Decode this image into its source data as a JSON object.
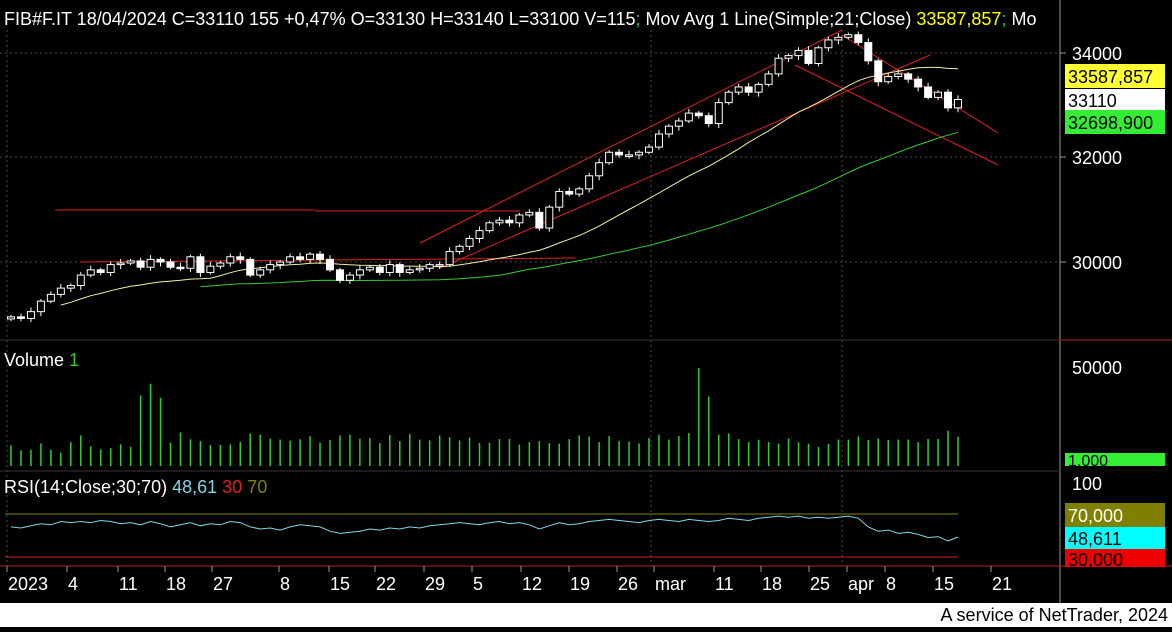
{
  "header": {
    "symbol_info": "FIB#F.IT 18/04/2024 C=33110 155 +0,47% O=33130 H=33140 L=33100 V=115",
    "sep1": ";",
    "ma_label": " Mov Avg 1 Line(Simple;21;Close) ",
    "ma_value": "33587,857",
    "sep2": ";",
    "trailing": " Mo"
  },
  "price_axis": {
    "ticks": [
      "34000",
      "32000",
      "30000"
    ],
    "badge_ma": "33587,857",
    "badge_close": "33110",
    "badge_ma2": "32698,900"
  },
  "volume_panel": {
    "label": "Volume",
    "value": "1",
    "tick": "50000",
    "badge": "1,000"
  },
  "rsi_panel": {
    "label": "RSI(14;Close;30;70)",
    "value": "48,61",
    "low": "30",
    "high": "70",
    "tick": "100",
    "badge_high": "70,000",
    "badge_value": "48,611",
    "badge_low": "30,000"
  },
  "time_axis": {
    "labels": [
      "2023",
      "4",
      "11",
      "18",
      "27",
      "8",
      "15",
      "22",
      "29",
      "5",
      "12",
      "19",
      "26",
      "mar",
      "11",
      "18",
      "25",
      "apr",
      "8",
      "15",
      "21"
    ]
  },
  "footer": {
    "credit": "A service of NetTrader, 2024"
  },
  "colors": {
    "background": "#000000",
    "candle": "#ffffff",
    "ma_short": "#f0f0a0",
    "ma_long": "#33cc33",
    "channel": "#e02020",
    "volume": "#33cc33",
    "rsi": "#7fd8e6",
    "rsi_high": "#808000",
    "rsi_low": "#d02020"
  },
  "chart_data": {
    "type": "candlestick",
    "symbol": "FIB#F.IT",
    "last": {
      "date": "18/04/2024",
      "close": 33110,
      "change": 155,
      "change_pct": "+0,47%",
      "open": 33130,
      "high": 33140,
      "low": 33100,
      "volume": 115
    },
    "y_range": [
      28700,
      34500
    ],
    "series": {
      "close": [
        28950,
        28920,
        29050,
        29250,
        29380,
        29500,
        29550,
        29750,
        29850,
        29800,
        29950,
        29980,
        30020,
        29900,
        30050,
        30000,
        29900,
        29880,
        30100,
        29800,
        29920,
        29980,
        30100,
        30050,
        29750,
        29850,
        29950,
        30000,
        30100,
        30050,
        30150,
        30050,
        29850,
        29650,
        29750,
        29850,
        29900,
        29800,
        29950,
        29800,
        29850,
        29880,
        29950,
        29950,
        30200,
        30300,
        30450,
        30600,
        30750,
        30800,
        30750,
        30900,
        30950,
        30650,
        31050,
        31350,
        31300,
        31400,
        31650,
        31900,
        32100,
        32050,
        32050,
        32100,
        32200,
        32450,
        32600,
        32700,
        32850,
        32800,
        32650,
        33050,
        33250,
        33350,
        33250,
        33400,
        33600,
        33900,
        33950,
        34050,
        33800,
        34100,
        34250,
        34300,
        34350,
        34200,
        33850,
        33450,
        33550,
        33600,
        33500,
        33350,
        33150,
        33250,
        32950,
        33110
      ],
      "volume": [
        10600,
        8000,
        8300,
        11500,
        8300,
        6800,
        12200,
        15600,
        10000,
        8500,
        9100,
        11100,
        9800,
        36000,
        42000,
        34800,
        11900,
        17200,
        13600,
        12700,
        10700,
        10700,
        11000,
        12200,
        16600,
        16000,
        13900,
        13500,
        13000,
        13600,
        15200,
        11900,
        13300,
        15600,
        16000,
        13900,
        14200,
        11600,
        15800,
        12700,
        16300,
        13500,
        13100,
        15600,
        14700,
        13100,
        14500,
        11700,
        11800,
        13700,
        13800,
        11000,
        12200,
        12700,
        11700,
        11400,
        13700,
        15600,
        15000,
        12200,
        15200,
        12700,
        12400,
        11500,
        14300,
        16000,
        13500,
        15400,
        16800,
        50000,
        35400,
        16000,
        16600,
        13700,
        12200,
        13400,
        12200,
        11400,
        14000,
        12100,
        11400,
        9700,
        11300,
        13500,
        13500,
        15100,
        13300,
        14000,
        13300,
        13500,
        13500,
        12200,
        13800,
        13800,
        18000,
        15000
      ],
      "rsi": [
        58,
        57,
        59,
        61,
        60,
        63,
        62,
        63,
        62,
        64,
        63,
        61,
        62,
        60,
        63,
        61,
        58,
        60,
        62,
        59,
        61,
        60,
        63,
        62,
        58,
        56,
        57,
        55,
        58,
        60,
        59,
        58,
        54,
        52,
        53,
        54,
        56,
        55,
        57,
        56,
        58,
        57,
        59,
        60,
        61,
        62,
        61,
        60,
        62,
        63,
        61,
        62,
        60,
        56,
        59,
        62,
        60,
        61,
        63,
        64,
        65,
        64,
        63,
        62,
        64,
        65,
        64,
        63,
        65,
        64,
        63,
        64,
        66,
        65,
        64,
        66,
        67,
        68,
        67,
        68,
        66,
        67,
        66,
        67,
        68,
        66,
        58,
        54,
        55,
        52,
        53,
        51,
        48,
        49,
        45,
        48.6
      ]
    },
    "indicators": {
      "sma21_last": 33587.857,
      "sma_long_last": 32698.9,
      "rsi_last": 48.611,
      "rsi_levels": [
        30,
        70
      ]
    },
    "rsi_range": [
      0,
      100
    ],
    "x_labels": [
      "2023",
      "4",
      "11",
      "18",
      "27",
      "8",
      "15",
      "22",
      "29",
      "5",
      "12",
      "19",
      "26",
      "mar",
      "11",
      "18",
      "25",
      "apr",
      "8",
      "15",
      "21"
    ]
  }
}
